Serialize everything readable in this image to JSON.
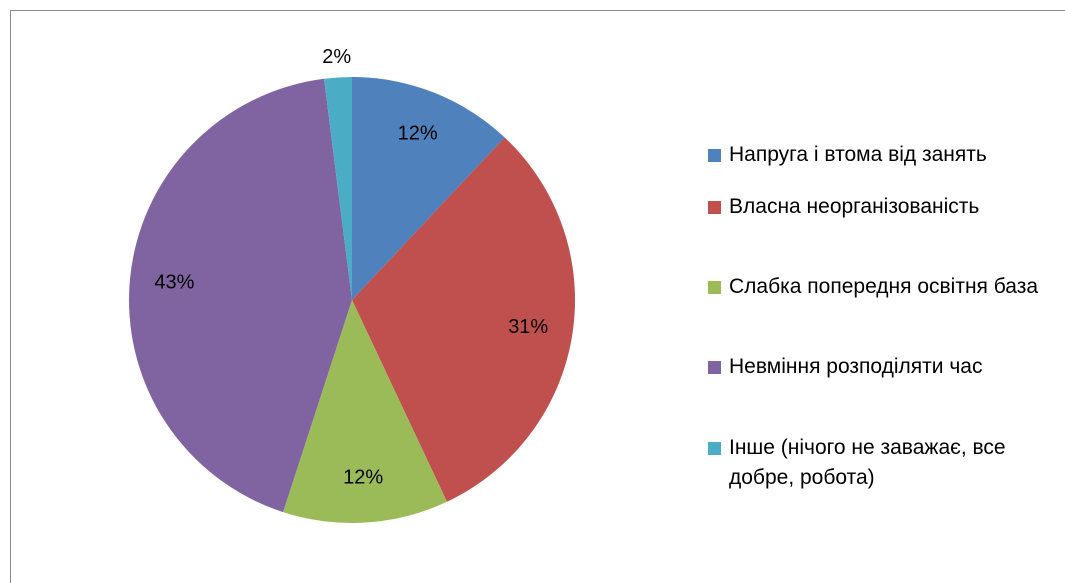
{
  "chart_data": {
    "type": "pie",
    "categories": [
      "Напруга і втома від занять",
      "Власна неорганізованість",
      "Слабка попередня освітня база",
      "Невміння розподіляти час",
      "Інше (нічого не заважає, все добре, робота)"
    ],
    "values": [
      12,
      31,
      12,
      43,
      2
    ],
    "value_labels": [
      "12%",
      "31%",
      "12%",
      "43%",
      "2%"
    ],
    "colors": [
      "#4f81bd",
      "#c0504d",
      "#9bbb59",
      "#8064a2",
      "#4bacc6"
    ],
    "legend": "right"
  }
}
